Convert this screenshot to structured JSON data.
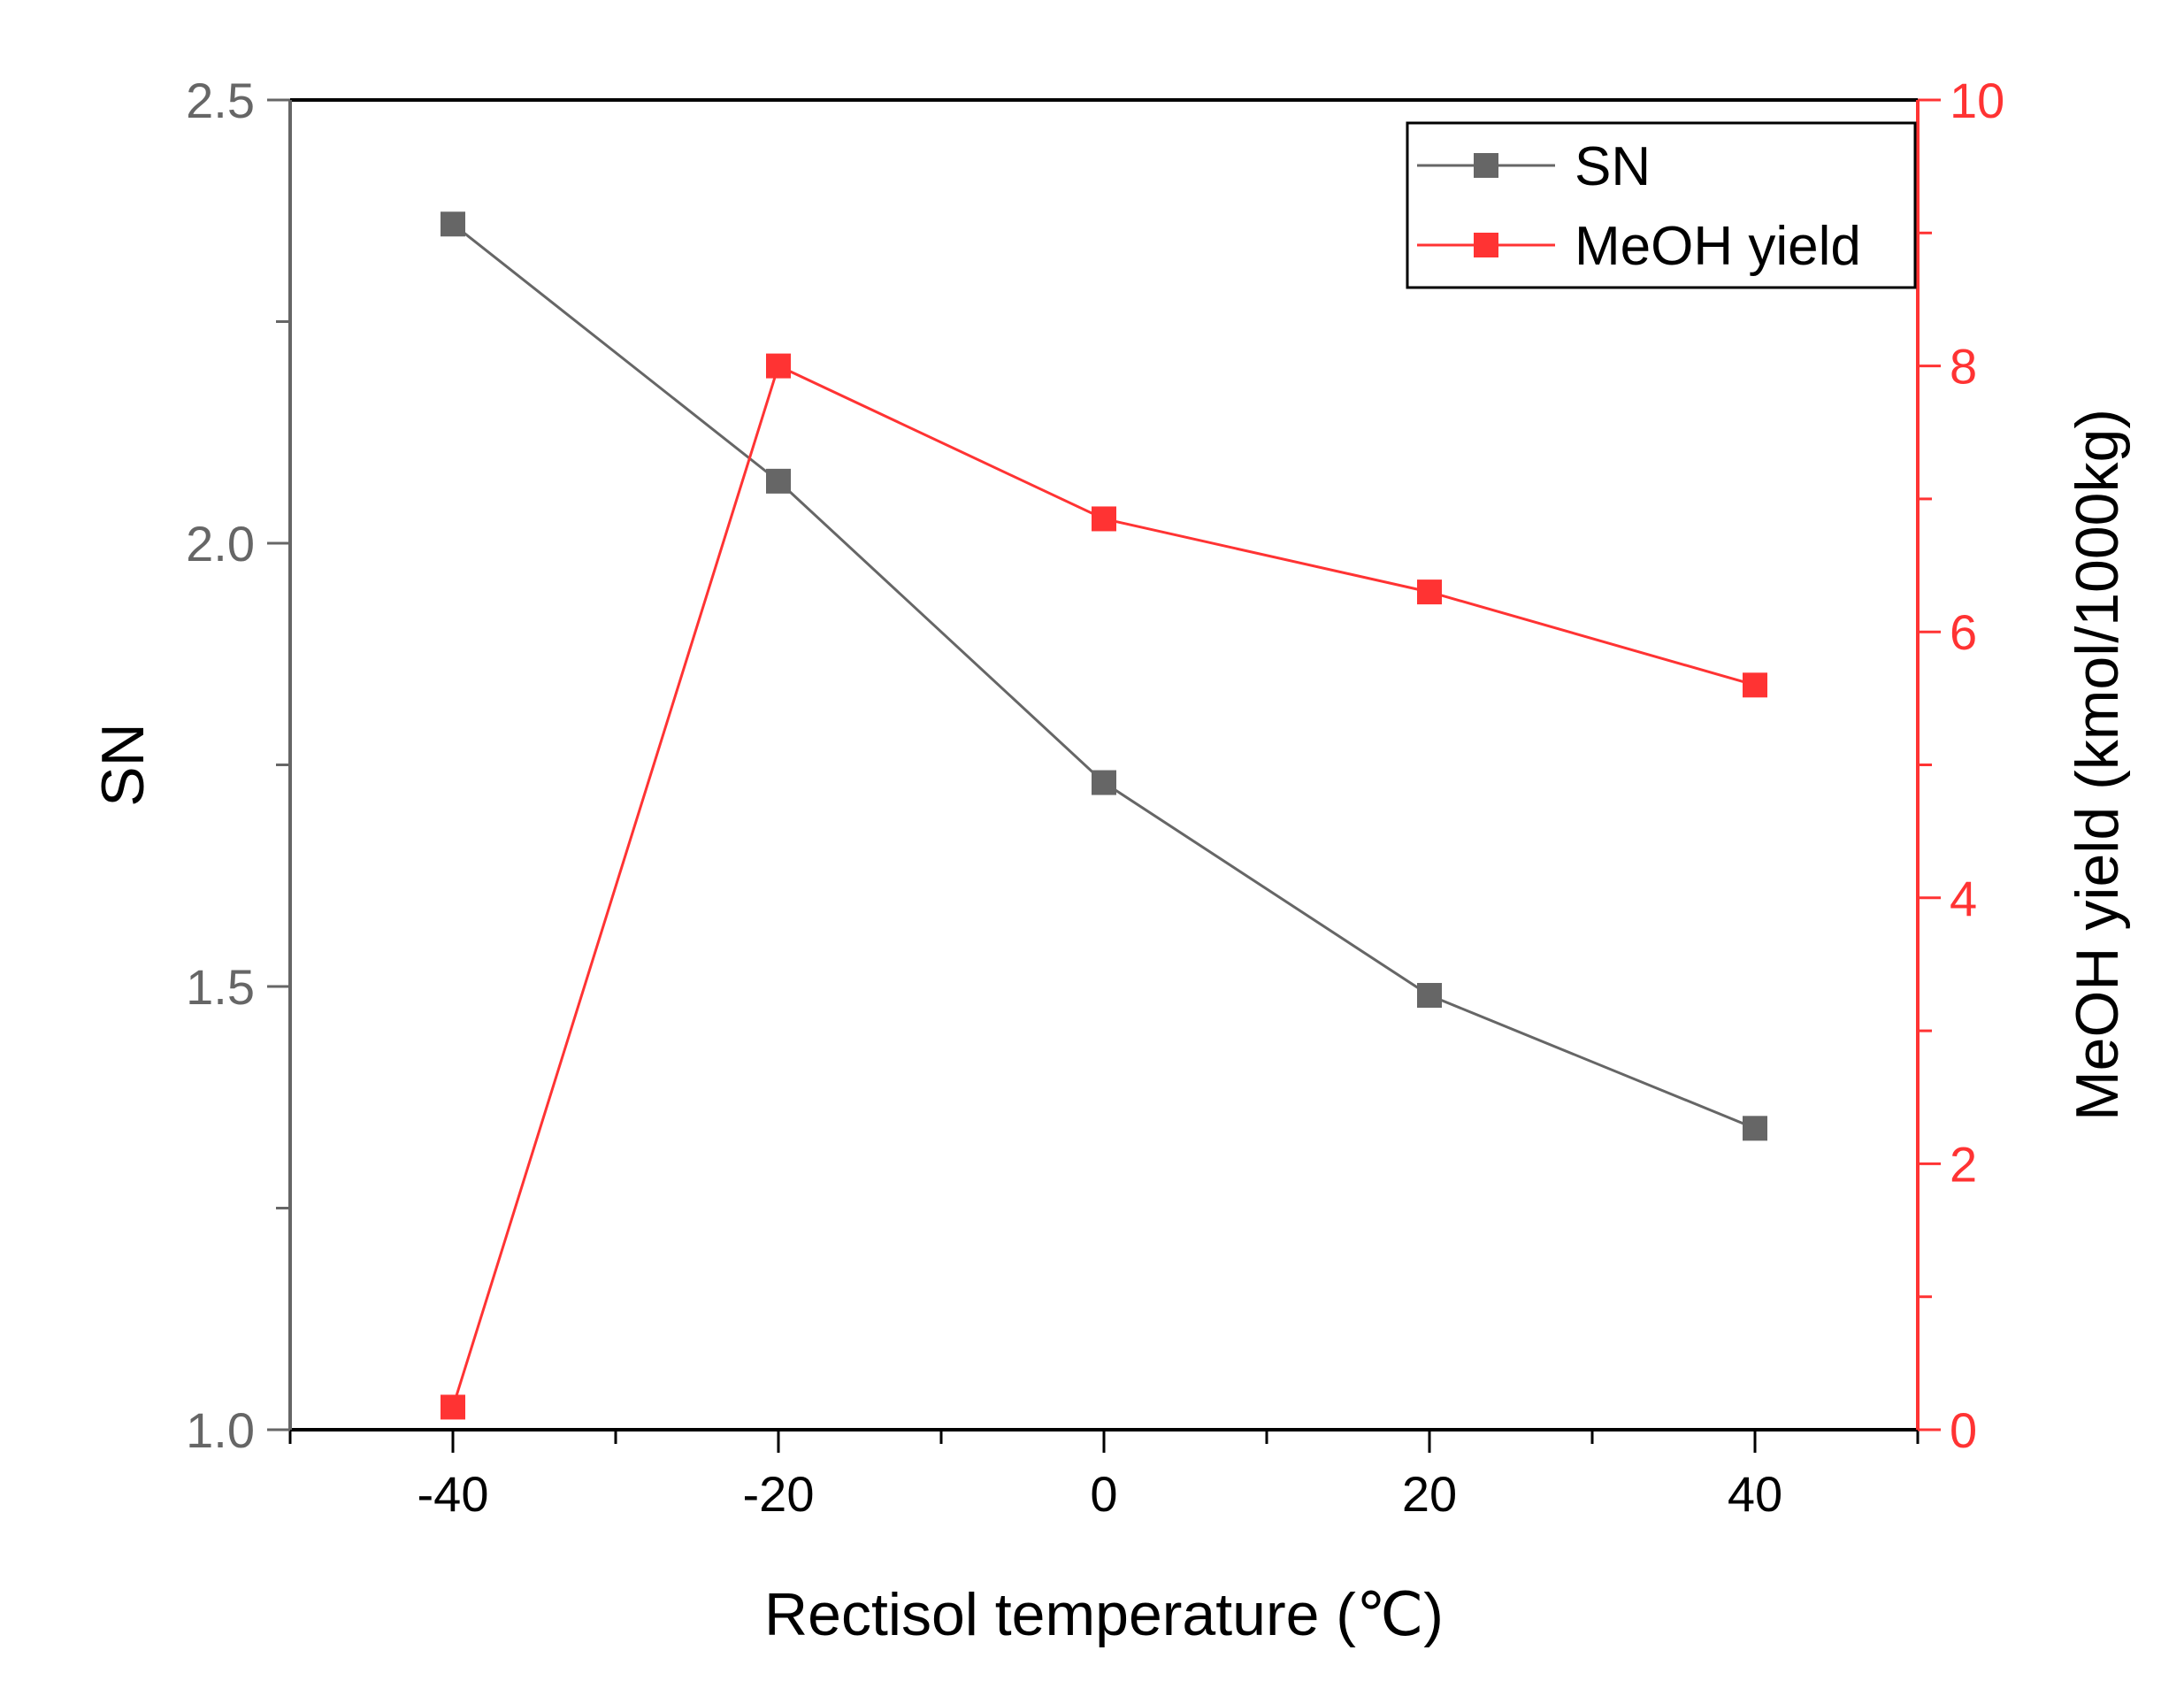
{
  "chart_data": {
    "type": "line",
    "xlabel": "Rectisol temperature (℃)",
    "x_ticks": [
      "-40",
      "-20",
      "0",
      "20",
      "40"
    ],
    "x_tick_values": [
      -40,
      -20,
      0,
      20,
      40
    ],
    "xlim": [
      -50,
      50
    ],
    "left_axis": {
      "label": "SN",
      "ylim": [
        1.0,
        2.5
      ],
      "ticks": [
        "1.0",
        "1.5",
        "2.0",
        "2.5"
      ],
      "tick_values": [
        1.0,
        1.5,
        2.0,
        2.5
      ],
      "color": "#666666"
    },
    "right_axis": {
      "label": "MeOH yield (kmol/1000kg)",
      "ylim": [
        0,
        10
      ],
      "ticks": [
        "0",
        "2",
        "4",
        "6",
        "8",
        "10"
      ],
      "tick_values": [
        0,
        2,
        4,
        6,
        8,
        10
      ],
      "color": "#ff3333"
    },
    "x": [
      -40,
      -20,
      0,
      20,
      40
    ],
    "series": [
      {
        "name": "SN",
        "axis": "left",
        "color": "#666666",
        "values": [
          2.36,
          2.07,
          1.73,
          1.49,
          1.34
        ]
      },
      {
        "name": "MeOH yield",
        "axis": "right",
        "color": "#ff3333",
        "values": [
          0.17,
          8.0,
          6.85,
          6.3,
          5.6
        ]
      }
    ],
    "legend": {
      "position": "top-right",
      "entries": [
        "SN",
        "MeOH yield"
      ]
    }
  }
}
